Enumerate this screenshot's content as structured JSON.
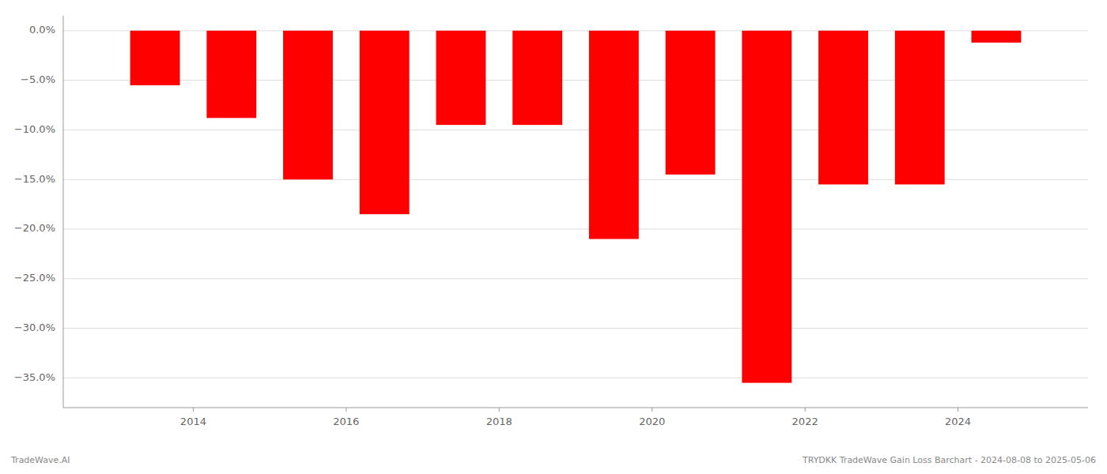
{
  "chart_data": {
    "type": "bar",
    "x": [
      2013,
      2014,
      2015,
      2016,
      2017,
      2018,
      2019,
      2020,
      2021,
      2022,
      2023,
      2024
    ],
    "values": [
      -5.5,
      -8.8,
      -15.0,
      -18.5,
      -9.5,
      -9.5,
      -21.0,
      -14.5,
      -35.5,
      -15.5,
      -15.5,
      -1.2
    ],
    "color": "#ff0000",
    "xlim": [
      2012.3,
      2025.7
    ],
    "xticks": [
      2014,
      2016,
      2018,
      2020,
      2022,
      2024
    ],
    "ylim": [
      -38,
      1.5
    ],
    "yticks": [
      {
        "value": 0.0,
        "label": "0.0%"
      },
      {
        "value": -5.0,
        "label": "−5.0%"
      },
      {
        "value": -10.0,
        "label": "−10.0%"
      },
      {
        "value": -15.0,
        "label": "−15.0%"
      },
      {
        "value": -20.0,
        "label": "−20.0%"
      },
      {
        "value": -25.0,
        "label": "−25.0%"
      },
      {
        "value": -30.0,
        "label": "−30.0%"
      },
      {
        "value": -35.0,
        "label": "−35.0%"
      }
    ],
    "grid": true,
    "annotations": [
      "TradeWave.AI",
      "TRYDKK TradeWave Gain Loss Barchart - 2024-08-08 to 2025-05-06"
    ]
  }
}
